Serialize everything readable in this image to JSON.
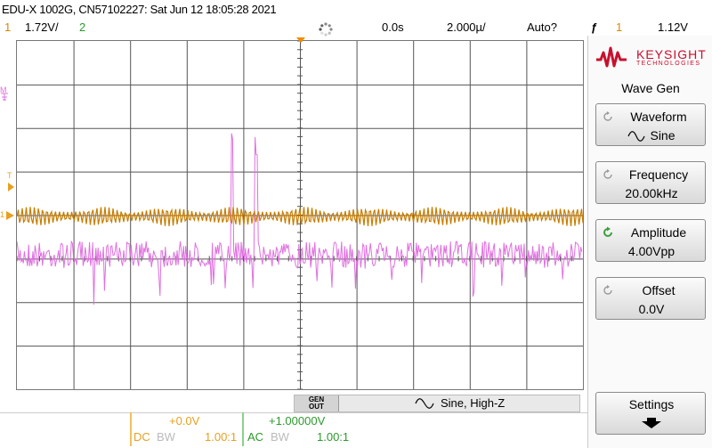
{
  "status": {
    "title": "EDU-X 1002G, CN57102227: Sat Jun 12 18:05:28 2021",
    "ch1_number": "1",
    "ch1_scale": "1.72V/",
    "ch2_number": "2",
    "time_position": "0.0s",
    "time_scale": "2.000µ/",
    "trigger_mode": "Auto?",
    "trigger_icon": "ƒ",
    "trigger_source": "1",
    "trigger_level": "1.12V"
  },
  "markers": {
    "math": "M",
    "trigger_level": "T",
    "ch1_ground": "1"
  },
  "generator": {
    "badge_line1": "GEN",
    "badge_line2": "OUT",
    "label": "Sine, High-Z"
  },
  "channels": [
    {
      "offset": "+0.0V",
      "coupling": "DC",
      "bw": "BW",
      "probe": "1.00:1",
      "color": "#d58a00"
    },
    {
      "offset": "+1.00000V",
      "coupling": "AC",
      "bw": "BW",
      "probe": "1.00:1",
      "color": "#2c9a2c"
    }
  ],
  "panel": {
    "brand": "KEYSIGHT",
    "brand_sub": "TECHNOLOGIES",
    "menu_title": "Wave Gen",
    "softkeys": [
      {
        "label": "Waveform",
        "value": "Sine",
        "value_icon": "sine-icon",
        "active": false
      },
      {
        "label": "Frequency",
        "value": "20.00kHz",
        "active": false
      },
      {
        "label": "Amplitude",
        "value": "4.00Vpp",
        "active": true
      },
      {
        "label": "Offset",
        "value": "0.0V",
        "active": false
      }
    ],
    "settings_label": "Settings"
  },
  "colors": {
    "ch1": "#c87d00",
    "ch1_marker": "#e8a020",
    "math": "#e070e0",
    "brand": "#c8102e",
    "active_knob": "#3aa03a"
  }
}
